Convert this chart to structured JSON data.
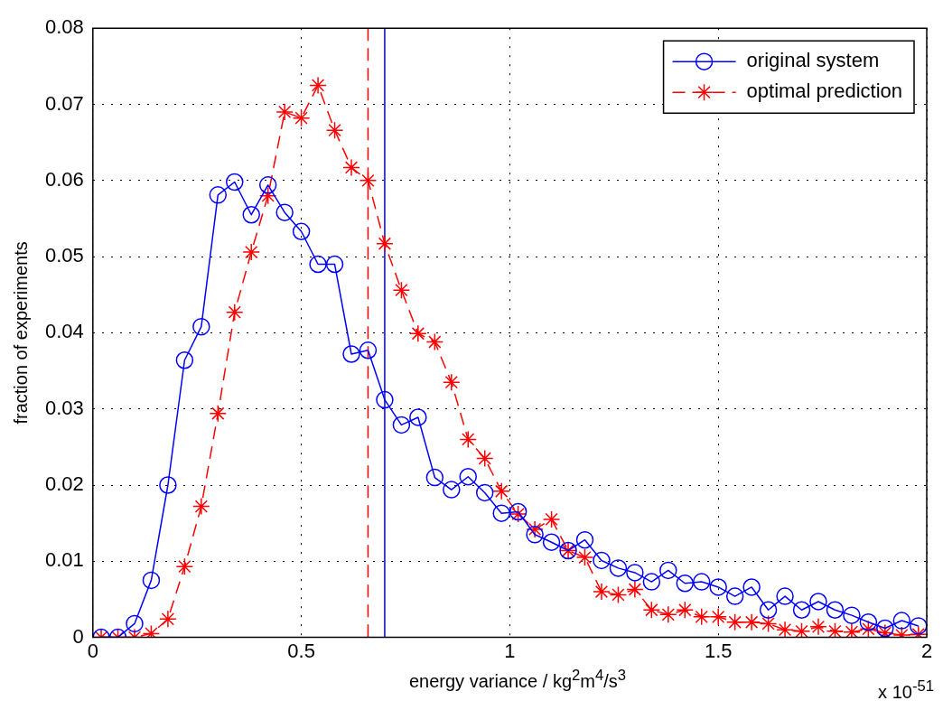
{
  "chart_data": {
    "type": "line",
    "xlabel": "energy variance / kg$^{2}$m$^{4}$/s$^{3}$",
    "ylabel": "fraction of experiments",
    "x": [
      0.02,
      0.06,
      0.1,
      0.14,
      0.18,
      0.22,
      0.26,
      0.3,
      0.34,
      0.38,
      0.42,
      0.46,
      0.5,
      0.54,
      0.58,
      0.62,
      0.66,
      0.7,
      0.74,
      0.78,
      0.82,
      0.86,
      0.9,
      0.94,
      0.98,
      1.02,
      1.06,
      1.1,
      1.14,
      1.18,
      1.22,
      1.26,
      1.3,
      1.34,
      1.38,
      1.42,
      1.46,
      1.5,
      1.54,
      1.58,
      1.62,
      1.66,
      1.7,
      1.74,
      1.78,
      1.82,
      1.86,
      1.9,
      1.94,
      1.98
    ],
    "series": [
      {
        "name": "original system",
        "color": "#0000ff",
        "marker": "circle",
        "line_style": "solid",
        "values": [
          0,
          0,
          0.0018,
          0.0075,
          0.02,
          0.0364,
          0.0408,
          0.0581,
          0.0598,
          0.0555,
          0.0594,
          0.0558,
          0.0533,
          0.049,
          0.049,
          0.0372,
          0.0377,
          0.0312,
          0.0279,
          0.0289,
          0.021,
          0.0194,
          0.0211,
          0.019,
          0.0163,
          0.0165,
          0.0135,
          0.0125,
          0.0114,
          0.0128,
          0.0101,
          0.0091,
          0.0085,
          0.0073,
          0.0088,
          0.0071,
          0.0073,
          0.0066,
          0.0054,
          0.0066,
          0.0036,
          0.0054,
          0.0036,
          0.0047,
          0.0036,
          0.0029,
          0.002,
          0.0012,
          0.0022,
          0.0015
        ]
      },
      {
        "name": "optimal prediction",
        "color": "#ff0000",
        "marker": "cross",
        "line_style": "dashed",
        "values": [
          0,
          0,
          0,
          0.0005,
          0.0024,
          0.0093,
          0.0172,
          0.0294,
          0.0427,
          0.0506,
          0.058,
          0.069,
          0.0682,
          0.0725,
          0.0666,
          0.0617,
          0.06,
          0.0517,
          0.0456,
          0.0399,
          0.0388,
          0.0335,
          0.026,
          0.0235,
          0.0192,
          0.0162,
          0.0142,
          0.0155,
          0.0114,
          0.0105,
          0.006,
          0.0056,
          0.0063,
          0.0036,
          0.003,
          0.0036,
          0.0027,
          0.0027,
          0.002,
          0.002,
          0.0018,
          0.001,
          0.0008,
          0.0014,
          0.0008,
          0.0007,
          0.0011,
          0.0006,
          0.0003,
          0.0004
        ]
      }
    ],
    "ref_lines": [
      {
        "axis": "x",
        "value": 0.66,
        "color": "#ff0000",
        "line_style": "dashed"
      },
      {
        "axis": "x",
        "value": 0.7,
        "color": "#0000ff",
        "line_style": "solid"
      }
    ],
    "xlim": [
      0,
      2
    ],
    "xticks": [
      0,
      0.5,
      1,
      1.5,
      2
    ],
    "ylim": [
      0,
      0.08
    ],
    "yticks": [
      0,
      0.01,
      0.02,
      0.03,
      0.04,
      0.05,
      0.06,
      0.07,
      0.08
    ],
    "grid": true,
    "legend": "top right",
    "annotations": [
      "x 10$^{-51}$"
    ]
  }
}
